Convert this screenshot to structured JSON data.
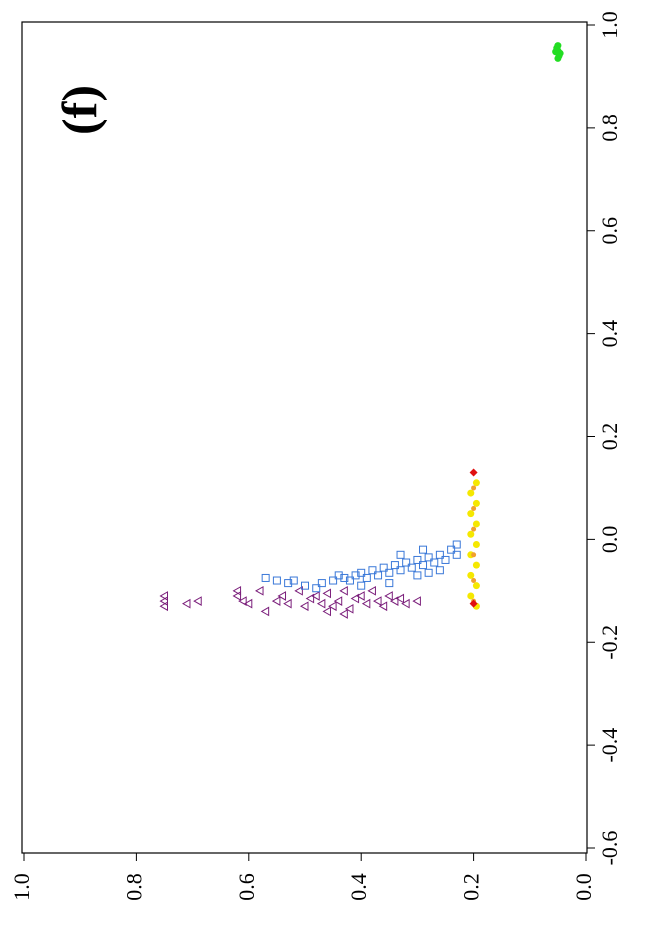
{
  "chart_data": {
    "type": "scatter",
    "annotation": "(f)",
    "xlim": [
      -0.6,
      1.0
    ],
    "xticks": [
      -0.6,
      -0.4,
      -0.2,
      {
        "value": 0,
        "label": "0.0"
      },
      0.2,
      0.4,
      0.6,
      0.8,
      {
        "value": 1,
        "label": "1.0"
      }
    ],
    "ylim": [
      0,
      1
    ],
    "yticks": [
      {
        "value": 0,
        "label": "0.0"
      },
      0.2,
      0.4,
      0.6,
      0.8,
      {
        "value": 1,
        "label": "1.0"
      }
    ],
    "series": [
      {
        "color": "#7b1f7b",
        "marker": "triangle",
        "y": [
          0.75,
          0.75,
          0.75,
          0.71,
          0.69,
          0.62,
          0.62,
          0.61,
          0.6,
          0.58,
          0.57,
          0.55,
          0.54,
          0.53,
          0.51,
          0.5,
          0.49,
          0.48,
          0.47,
          0.46,
          0.45,
          0.44,
          0.43,
          0.42,
          0.41,
          0.4,
          0.39,
          0.38,
          0.37,
          0.36,
          0.35,
          0.34,
          0.33,
          0.32,
          0.3,
          0.46,
          0.43
        ],
        "x": [
          -0.12,
          -0.13,
          -0.11,
          -0.125,
          -0.12,
          -0.1,
          -0.11,
          -0.12,
          -0.125,
          -0.1,
          -0.14,
          -0.12,
          -0.11,
          -0.125,
          -0.1,
          -0.13,
          -0.115,
          -0.11,
          -0.125,
          -0.105,
          -0.13,
          -0.12,
          -0.1,
          -0.135,
          -0.115,
          -0.11,
          -0.125,
          -0.1,
          -0.12,
          -0.13,
          -0.11,
          -0.12,
          -0.115,
          -0.125,
          -0.12,
          -0.14,
          -0.145
        ]
      },
      {
        "color": "#3a78d8",
        "marker": "square",
        "y": [
          0.57,
          0.55,
          0.53,
          0.52,
          0.5,
          0.48,
          0.47,
          0.45,
          0.44,
          0.43,
          0.42,
          0.41,
          0.4,
          0.39,
          0.38,
          0.37,
          0.36,
          0.35,
          0.34,
          0.33,
          0.32,
          0.31,
          0.3,
          0.3,
          0.29,
          0.28,
          0.28,
          0.27,
          0.26,
          0.25,
          0.24,
          0.23,
          0.23,
          0.26,
          0.35,
          0.4,
          0.33,
          0.29
        ],
        "x": [
          -0.075,
          -0.08,
          -0.085,
          -0.08,
          -0.09,
          -0.095,
          -0.085,
          -0.08,
          -0.07,
          -0.075,
          -0.08,
          -0.07,
          -0.065,
          -0.075,
          -0.06,
          -0.07,
          -0.055,
          -0.065,
          -0.05,
          -0.06,
          -0.045,
          -0.055,
          -0.04,
          -0.07,
          -0.05,
          -0.035,
          -0.065,
          -0.045,
          -0.03,
          -0.04,
          -0.02,
          -0.01,
          -0.03,
          -0.06,
          -0.085,
          -0.09,
          -0.03,
          -0.02
        ]
      },
      {
        "color": "#f5e800",
        "marker": "dot",
        "y": [
          0.195,
          0.205,
          0.195,
          0.205,
          0.195,
          0.205,
          0.195,
          0.205,
          0.195,
          0.205,
          0.195,
          0.205,
          0.195
        ],
        "x": [
          -0.13,
          -0.11,
          -0.09,
          -0.07,
          -0.05,
          -0.03,
          -0.01,
          0.01,
          0.03,
          0.05,
          0.07,
          0.09,
          0.11
        ]
      },
      {
        "color": "#f0a030",
        "marker": "small-dot",
        "y": [
          0.2,
          0.2,
          0.2,
          0.2,
          0.2,
          0.2
        ],
        "x": [
          -0.12,
          -0.08,
          -0.03,
          0.02,
          0.06,
          0.1
        ]
      },
      {
        "color": "#e01010",
        "marker": "diamond",
        "y": [
          0.2,
          0.2
        ],
        "x": [
          0.13,
          -0.125
        ]
      },
      {
        "color": "#22dd22",
        "marker": "dot",
        "y": [
          0.05,
          0.048,
          0.052,
          0.05,
          0.046,
          0.054,
          0.05
        ],
        "x": [
          0.95,
          0.94,
          0.955,
          0.935,
          0.945,
          0.948,
          0.96
        ]
      }
    ]
  }
}
